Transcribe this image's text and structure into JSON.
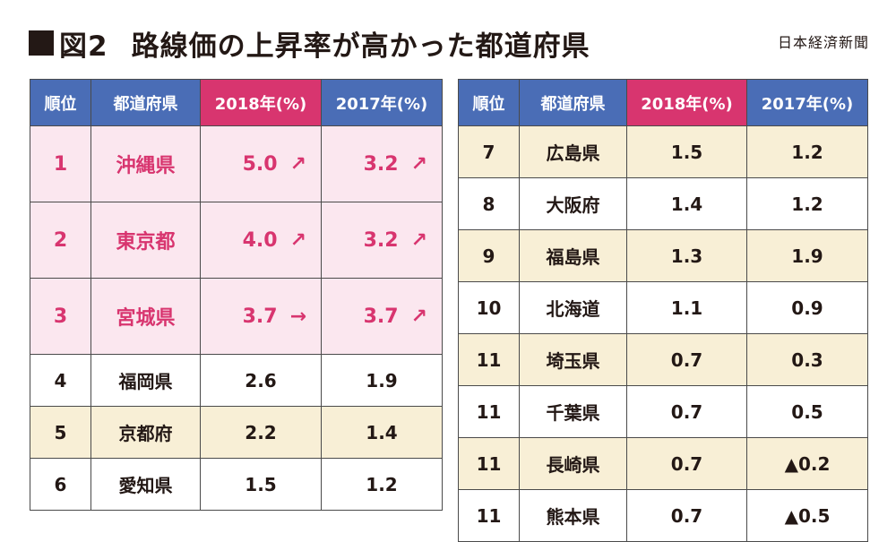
{
  "header": {
    "fig_label": "図2",
    "title": "路線価の上昇率が高かった都道府県",
    "source": "日本経済新聞"
  },
  "columns": [
    "順位",
    "都道府県",
    "2018年(%)",
    "2017年(%)"
  ],
  "table_left": [
    {
      "rank": "1",
      "pref": "沖縄県",
      "y2018": "5.0",
      "a2018": "↗",
      "y2017": "3.2",
      "a2017": "↗"
    },
    {
      "rank": "2",
      "pref": "東京都",
      "y2018": "4.0",
      "a2018": "↗",
      "y2017": "3.2",
      "a2017": "↗"
    },
    {
      "rank": "3",
      "pref": "宮城県",
      "y2018": "3.7",
      "a2018": "→",
      "y2017": "3.7",
      "a2017": "↗"
    },
    {
      "rank": "4",
      "pref": "福岡県",
      "y2018": "2.6",
      "y2017": "1.9"
    },
    {
      "rank": "5",
      "pref": "京都府",
      "y2018": "2.2",
      "y2017": "1.4"
    },
    {
      "rank": "6",
      "pref": "愛知県",
      "y2018": "1.5",
      "y2017": "1.2"
    }
  ],
  "table_right": [
    {
      "rank": "7",
      "pref": "広島県",
      "y2018": "1.5",
      "y2017": "1.2"
    },
    {
      "rank": "8",
      "pref": "大阪府",
      "y2018": "1.4",
      "y2017": "1.2"
    },
    {
      "rank": "9",
      "pref": "福島県",
      "y2018": "1.3",
      "y2017": "1.9"
    },
    {
      "rank": "10",
      "pref": "北海道",
      "y2018": "1.1",
      "y2017": "0.9"
    },
    {
      "rank": "11",
      "pref": "埼玉県",
      "y2018": "0.7",
      "y2017": "0.3"
    },
    {
      "rank": "11",
      "pref": "千葉県",
      "y2018": "0.7",
      "y2017": "0.5"
    },
    {
      "rank": "11",
      "pref": "長崎県",
      "y2018": "0.7",
      "y2017": "▲0.2"
    },
    {
      "rank": "11",
      "pref": "熊本県",
      "y2018": "0.7",
      "y2017": "▲0.5"
    }
  ],
  "colors": {
    "header_blue": "#4a6db6",
    "header_pink": "#d8356f",
    "top3_bg": "#fbe7ef",
    "top3_text": "#d8356f",
    "stripe_beige": "#f8efd6"
  }
}
